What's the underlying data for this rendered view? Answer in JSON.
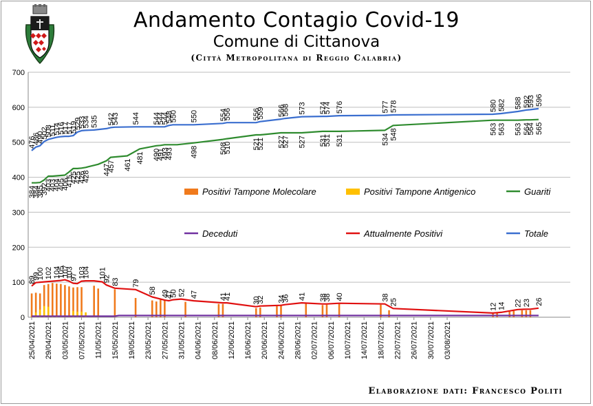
{
  "header": {
    "title": "Andamento Contagio Covid-19",
    "subtitle": "Comune di Cittanova",
    "region": "(Città Metropolitana di Reggio Calabria)"
  },
  "footer": {
    "credit": "Elaborazione dati: Francesco Politi"
  },
  "logo": {
    "icon": "coat-of-arms-icon"
  },
  "chart_data": {
    "type": "line",
    "ylim": [
      0,
      700
    ],
    "yticks": [
      0,
      100,
      200,
      300,
      400,
      500,
      600,
      700
    ],
    "grid": "horizontal",
    "legend_placement": "inside-middle",
    "x_tick_labels": [
      "25/04/2021",
      "29/04/2021",
      "03/05/2021",
      "07/05/2021",
      "11/05/2021",
      "15/05/2021",
      "19/05/2021",
      "23/05/2021",
      "27/05/2021",
      "31/05/2021",
      "04/06/2021",
      "08/06/2021",
      "12/06/2021",
      "16/06/2021",
      "20/06/2021",
      "24/06/2021",
      "28/06/2021",
      "02/07/2021",
      "06/07/2021",
      "10/07/2021",
      "14/07/2021",
      "18/07/2021",
      "22/07/2021",
      "26/07/2021",
      "30/07/2021",
      "03/08/2021"
    ],
    "series": [
      {
        "name": "Positivi Tampone Molecolare",
        "type": "bar",
        "color": "#f07a1c",
        "points": [
          [
            0,
            68
          ],
          [
            1,
            70
          ],
          [
            2,
            68
          ],
          [
            3,
            92
          ],
          [
            4,
            95
          ],
          [
            5,
            98
          ],
          [
            6,
            96
          ],
          [
            7,
            95
          ],
          [
            8,
            92
          ],
          [
            9,
            88
          ],
          [
            10,
            85
          ],
          [
            11,
            86
          ],
          [
            12,
            86
          ],
          [
            15,
            90
          ],
          [
            16,
            82
          ],
          [
            20,
            80
          ],
          [
            25,
            55
          ],
          [
            29,
            48
          ],
          [
            30,
            45
          ],
          [
            31,
            50
          ],
          [
            32,
            50
          ],
          [
            37,
            44
          ],
          [
            45,
            38
          ],
          [
            46,
            38
          ],
          [
            54,
            26
          ],
          [
            55,
            28
          ],
          [
            59,
            33
          ],
          [
            60,
            36
          ],
          [
            66,
            40
          ],
          [
            70,
            35
          ],
          [
            71,
            36
          ],
          [
            74,
            38
          ],
          [
            84,
            36
          ],
          [
            86,
            20
          ],
          [
            111,
            10
          ],
          [
            112,
            12
          ],
          [
            115,
            16
          ],
          [
            116,
            18
          ],
          [
            118,
            20
          ],
          [
            119,
            20
          ],
          [
            120,
            20
          ]
        ]
      },
      {
        "name": "Positivi Tampone Antigenico",
        "type": "bar",
        "color": "#ffc000",
        "points": [
          [
            1,
            14
          ],
          [
            2,
            22
          ],
          [
            3,
            32
          ],
          [
            4,
            30
          ],
          [
            5,
            5
          ],
          [
            6,
            4
          ],
          [
            10,
            18
          ],
          [
            11,
            16
          ],
          [
            12,
            16
          ],
          [
            13,
            14
          ]
        ]
      },
      {
        "name": "Guariti",
        "type": "line",
        "color": "#2e8b2e",
        "points": [
          [
            0,
            384
          ],
          [
            1,
            384
          ],
          [
            2,
            385
          ],
          [
            3,
            392
          ],
          [
            4,
            403
          ],
          [
            5,
            403
          ],
          [
            6,
            404
          ],
          [
            7,
            405
          ],
          [
            8,
            406
          ],
          [
            9,
            415
          ],
          [
            10,
            425
          ],
          [
            11,
            425
          ],
          [
            12,
            426
          ],
          [
            13,
            428
          ],
          [
            16,
            437
          ],
          [
            18,
            447
          ],
          [
            19,
            457
          ],
          [
            23,
            461
          ],
          [
            26,
            481
          ],
          [
            30,
            490
          ],
          [
            31,
            491
          ],
          [
            32,
            493
          ],
          [
            33,
            493
          ],
          [
            35,
            493
          ],
          [
            39,
            498
          ],
          [
            46,
            508
          ],
          [
            47,
            510
          ],
          [
            54,
            521
          ],
          [
            55,
            521
          ],
          [
            60,
            527
          ],
          [
            61,
            527
          ],
          [
            65,
            527
          ],
          [
            70,
            531
          ],
          [
            71,
            531
          ],
          [
            74,
            531
          ],
          [
            85,
            534
          ],
          [
            87,
            548
          ],
          [
            111,
            563
          ],
          [
            113,
            563
          ],
          [
            117,
            563
          ],
          [
            119,
            564
          ],
          [
            120,
            564
          ],
          [
            122,
            565
          ]
        ],
        "labels": [
          [
            0,
            384
          ],
          [
            1,
            384
          ],
          [
            2,
            385
          ],
          [
            3,
            392
          ],
          [
            4,
            403
          ],
          [
            5,
            403
          ],
          [
            6,
            404
          ],
          [
            7,
            405
          ],
          [
            8,
            406
          ],
          [
            9,
            415
          ],
          [
            10,
            425
          ],
          [
            11,
            425
          ],
          [
            12,
            426
          ],
          [
            13,
            428
          ],
          [
            18,
            447
          ],
          [
            19,
            457
          ],
          [
            23,
            461
          ],
          [
            26,
            481
          ],
          [
            30,
            490
          ],
          [
            31,
            491
          ],
          [
            32,
            493
          ],
          [
            33,
            493
          ],
          [
            39,
            498
          ],
          [
            46,
            508
          ],
          [
            47,
            510
          ],
          [
            54,
            521
          ],
          [
            55,
            521
          ],
          [
            60,
            527
          ],
          [
            61,
            527
          ],
          [
            65,
            527
          ],
          [
            70,
            531
          ],
          [
            71,
            531
          ],
          [
            74,
            531
          ],
          [
            85,
            534
          ],
          [
            87,
            548
          ],
          [
            111,
            563
          ],
          [
            113,
            563
          ],
          [
            117,
            563
          ],
          [
            119,
            564
          ],
          [
            120,
            564
          ],
          [
            122,
            565
          ]
        ]
      },
      {
        "name": "Deceduti",
        "type": "line",
        "color": "#7030a0",
        "points": [
          [
            0,
            3
          ],
          [
            20,
            3
          ],
          [
            21,
            5
          ],
          [
            122,
            5
          ]
        ]
      },
      {
        "name": "Attualmente Positivi",
        "type": "line",
        "color": "#e01010",
        "points": [
          [
            0,
            89
          ],
          [
            1,
            99
          ],
          [
            2,
            100
          ],
          [
            4,
            102
          ],
          [
            6,
            104
          ],
          [
            7,
            105
          ],
          [
            8,
            107
          ],
          [
            9,
            103
          ],
          [
            10,
            97
          ],
          [
            11,
            96
          ],
          [
            12,
            103
          ],
          [
            13,
            104
          ],
          [
            15,
            104
          ],
          [
            17,
            101
          ],
          [
            18,
            92
          ],
          [
            20,
            83
          ],
          [
            25,
            79
          ],
          [
            29,
            58
          ],
          [
            32,
            49
          ],
          [
            33,
            47
          ],
          [
            34,
            50
          ],
          [
            36,
            52
          ],
          [
            39,
            47
          ],
          [
            46,
            41
          ],
          [
            47,
            41
          ],
          [
            54,
            30
          ],
          [
            55,
            32
          ],
          [
            60,
            34
          ],
          [
            61,
            36
          ],
          [
            65,
            41
          ],
          [
            70,
            38
          ],
          [
            71,
            38
          ],
          [
            74,
            40
          ],
          [
            85,
            38
          ],
          [
            87,
            25
          ],
          [
            111,
            12
          ],
          [
            113,
            14
          ],
          [
            117,
            22
          ],
          [
            119,
            23
          ],
          [
            120,
            23
          ],
          [
            122,
            26
          ]
        ],
        "labels": [
          [
            0,
            89
          ],
          [
            1,
            99
          ],
          [
            2,
            100
          ],
          [
            4,
            102
          ],
          [
            6,
            104
          ],
          [
            7,
            105
          ],
          [
            8,
            107
          ],
          [
            9,
            103
          ],
          [
            10,
            97
          ],
          [
            12,
            103
          ],
          [
            13,
            104
          ],
          [
            17,
            101
          ],
          [
            18,
            92
          ],
          [
            20,
            83
          ],
          [
            25,
            79
          ],
          [
            29,
            58
          ],
          [
            32,
            49
          ],
          [
            33,
            47
          ],
          [
            34,
            50
          ],
          [
            36,
            52
          ],
          [
            39,
            47
          ],
          [
            46,
            41
          ],
          [
            47,
            41
          ],
          [
            54,
            30
          ],
          [
            55,
            32
          ],
          [
            60,
            34
          ],
          [
            61,
            36
          ],
          [
            65,
            41
          ],
          [
            70,
            38
          ],
          [
            71,
            38
          ],
          [
            74,
            40
          ],
          [
            85,
            38
          ],
          [
            87,
            25
          ],
          [
            111,
            12
          ],
          [
            113,
            14
          ],
          [
            117,
            22
          ],
          [
            119,
            23
          ],
          [
            122,
            26
          ]
        ]
      },
      {
        "name": "Totale",
        "type": "line",
        "color": "#3a6ecf",
        "points": [
          [
            0,
            476
          ],
          [
            1,
            486
          ],
          [
            2,
            490
          ],
          [
            3,
            502
          ],
          [
            4,
            508
          ],
          [
            5,
            511
          ],
          [
            6,
            514
          ],
          [
            7,
            516
          ],
          [
            8,
            517
          ],
          [
            9,
            517
          ],
          [
            10,
            519
          ],
          [
            11,
            529
          ],
          [
            12,
            533
          ],
          [
            13,
            534
          ],
          [
            15,
            535
          ],
          [
            18,
            539
          ],
          [
            19,
            542
          ],
          [
            20,
            543
          ],
          [
            25,
            544
          ],
          [
            30,
            544
          ],
          [
            31,
            544
          ],
          [
            32,
            544
          ],
          [
            33,
            548
          ],
          [
            34,
            550
          ],
          [
            39,
            550
          ],
          [
            46,
            554
          ],
          [
            47,
            556
          ],
          [
            54,
            556
          ],
          [
            55,
            559
          ],
          [
            60,
            566
          ],
          [
            61,
            568
          ],
          [
            65,
            573
          ],
          [
            70,
            574
          ],
          [
            71,
            574
          ],
          [
            74,
            576
          ],
          [
            85,
            577
          ],
          [
            87,
            578
          ],
          [
            111,
            580
          ],
          [
            113,
            582
          ],
          [
            117,
            588
          ],
          [
            119,
            592
          ],
          [
            120,
            593
          ],
          [
            122,
            596
          ]
        ],
        "labels": [
          [
            0,
            476
          ],
          [
            1,
            486
          ],
          [
            2,
            490
          ],
          [
            3,
            502
          ],
          [
            4,
            508
          ],
          [
            5,
            511
          ],
          [
            6,
            514
          ],
          [
            7,
            516
          ],
          [
            8,
            517
          ],
          [
            9,
            517
          ],
          [
            10,
            519
          ],
          [
            11,
            529
          ],
          [
            12,
            533
          ],
          [
            13,
            534
          ],
          [
            15,
            535
          ],
          [
            19,
            542
          ],
          [
            20,
            543
          ],
          [
            25,
            544
          ],
          [
            30,
            544
          ],
          [
            31,
            544
          ],
          [
            32,
            544
          ],
          [
            33,
            548
          ],
          [
            34,
            550
          ],
          [
            39,
            550
          ],
          [
            46,
            554
          ],
          [
            47,
            556
          ],
          [
            54,
            556
          ],
          [
            55,
            559
          ],
          [
            60,
            566
          ],
          [
            61,
            568
          ],
          [
            65,
            573
          ],
          [
            70,
            574
          ],
          [
            71,
            574
          ],
          [
            74,
            576
          ],
          [
            85,
            577
          ],
          [
            87,
            578
          ],
          [
            111,
            580
          ],
          [
            113,
            582
          ],
          [
            117,
            588
          ],
          [
            119,
            592
          ],
          [
            120,
            593
          ],
          [
            122,
            596
          ]
        ]
      }
    ]
  }
}
